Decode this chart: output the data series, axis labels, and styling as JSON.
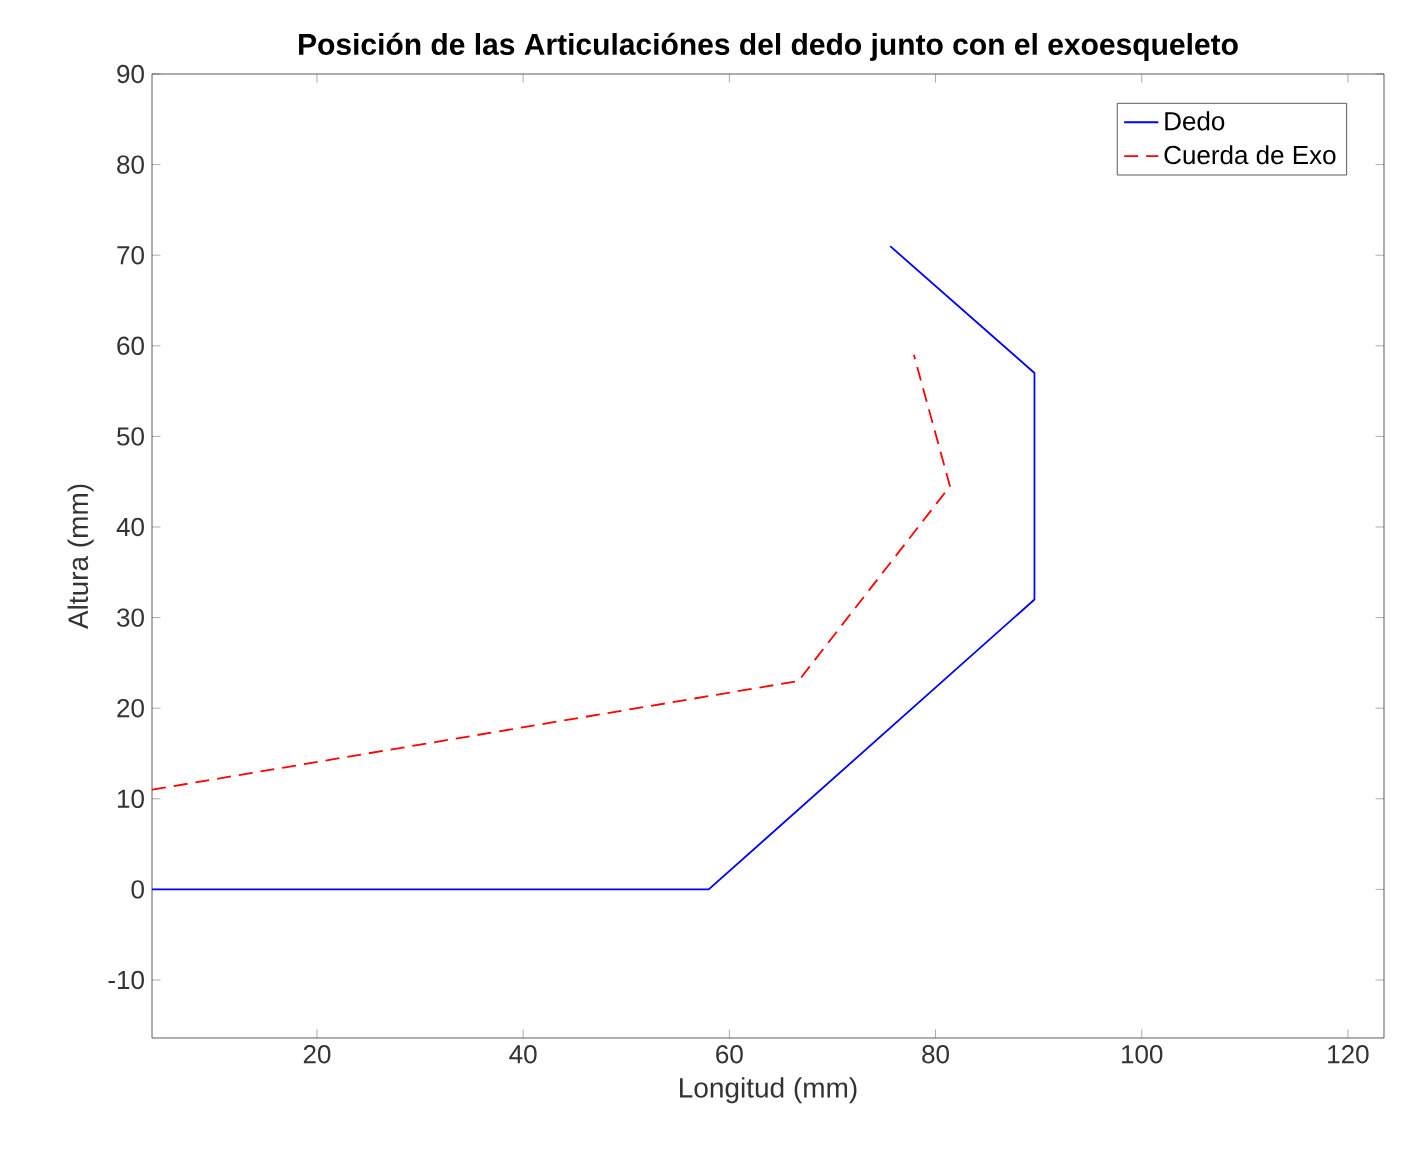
{
  "chart_data": {
    "type": "line",
    "title": "Posición de las Articulaciónes del dedo junto con el exoesqueleto",
    "xlabel": "Longitud (mm)",
    "ylabel": "Altura (mm)",
    "xlim": [
      4,
      123.5
    ],
    "ylim": [
      -16.4,
      90
    ],
    "xticks": [
      20,
      40,
      60,
      80,
      100,
      120
    ],
    "yticks": [
      -10,
      0,
      10,
      20,
      30,
      40,
      50,
      60,
      70,
      80,
      90
    ],
    "legend": "top right",
    "grid": false,
    "series": [
      {
        "name": "Dedo",
        "color": "#0000ff",
        "line_style": "solid",
        "x": [
          4,
          58,
          89.6,
          89.6,
          75.6
        ],
        "values": [
          0,
          0,
          32,
          57,
          71
        ]
      },
      {
        "name": "Cuerda de Exo",
        "color": "#ff0000",
        "line_style": "dashed",
        "x": [
          4,
          66.7,
          81.4,
          77.9
        ],
        "values": [
          11,
          23,
          44.5,
          59
        ]
      }
    ]
  }
}
